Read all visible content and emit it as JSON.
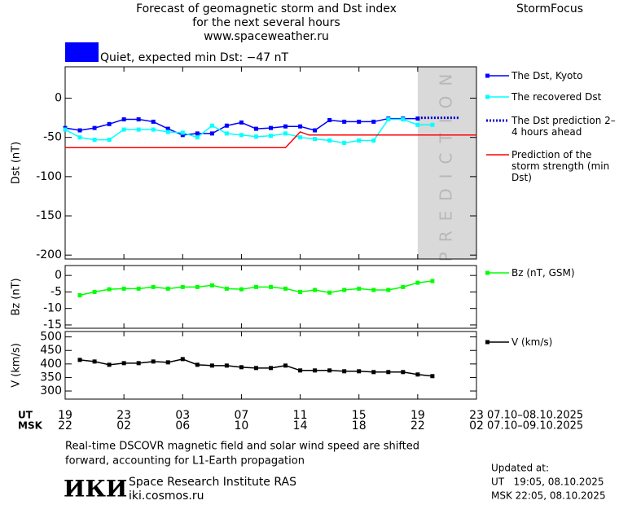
{
  "header": {
    "title": "Forecast of geomagnetic storm and Dst index",
    "subtitle": "for the next several hours",
    "site": "www.spaceweather.ru",
    "brand": "StormFocus"
  },
  "status": {
    "text": "Quiet, expected min Dst: −47 nT",
    "color": "#0000ff"
  },
  "chart_data": [
    {
      "type": "line",
      "ylabel": "Dst (nT)",
      "xlim": [
        0,
        28
      ],
      "ylim": [
        -205,
        40
      ],
      "yticks": [
        0,
        -50,
        -100,
        -150,
        -200
      ],
      "prediction_region": [
        24,
        28
      ],
      "prediction_label": "PREDICTION",
      "series": [
        {
          "name": "The Dst, Kyoto",
          "color": "#0000ff",
          "marker": "square",
          "dash": false,
          "x": [
            0,
            1,
            2,
            3,
            4,
            5,
            6,
            7,
            8,
            9,
            10,
            11,
            12,
            13,
            14,
            15,
            16,
            17,
            18,
            19,
            20,
            21,
            22,
            23,
            24
          ],
          "values": [
            -38,
            -41,
            -38,
            -33,
            -27,
            -27,
            -30,
            -39,
            -47,
            -45,
            -45,
            -35,
            -31,
            -39,
            -38,
            -36,
            -36,
            -41,
            -28,
            -30,
            -30,
            -30,
            -26,
            -26,
            -26
          ]
        },
        {
          "name": "The recovered Dst",
          "color": "#00ffff",
          "marker": "square",
          "dash": false,
          "x": [
            0,
            1,
            2,
            3,
            4,
            5,
            6,
            7,
            8,
            9,
            10,
            11,
            12,
            13,
            14,
            15,
            16,
            17,
            18,
            19,
            20,
            21,
            22,
            23,
            24,
            25
          ],
          "values": [
            -40,
            -50,
            -53,
            -53,
            -40,
            -40,
            -40,
            -43,
            -44,
            -50,
            -35,
            -45,
            -47,
            -49,
            -48,
            -45,
            -50,
            -52,
            -54,
            -57,
            -54,
            -54,
            -27,
            -27,
            -34,
            -34
          ]
        },
        {
          "name": "The Dst prediction 2–4 hours ahead",
          "color": "#0000cc",
          "marker": "none",
          "dash": true,
          "x": [
            24,
            26.8
          ],
          "values": [
            -25,
            -25
          ]
        },
        {
          "name": "Prediction of the storm strength (min Dst)",
          "color": "#ff0000",
          "marker": "none",
          "dash": false,
          "x": [
            0,
            15,
            16,
            16.6,
            28
          ],
          "values": [
            -63,
            -63,
            -43,
            -47,
            -47
          ]
        }
      ]
    },
    {
      "type": "line",
      "ylabel": "Bz (nT)",
      "xlim": [
        0,
        28
      ],
      "ylim": [
        -16,
        3
      ],
      "yticks": [
        0,
        -5,
        -10,
        -15
      ],
      "series": [
        {
          "name": "Bz (nT, GSM)",
          "color": "#00ff00",
          "marker": "square",
          "dash": false,
          "x": [
            1,
            2,
            3,
            4,
            5,
            6,
            7,
            8,
            9,
            10,
            11,
            12,
            13,
            14,
            15,
            16,
            17,
            18,
            19,
            20,
            21,
            22,
            23,
            24,
            25
          ],
          "values": [
            -6,
            -5,
            -4.2,
            -4,
            -4,
            -3.5,
            -4,
            -3.5,
            -3.5,
            -3,
            -4,
            -4.2,
            -3.5,
            -3.5,
            -4,
            -5,
            -4.4,
            -5.2,
            -4.4,
            -4,
            -4.4,
            -4.4,
            -3.5,
            -2.2,
            -1.7
          ]
        }
      ]
    },
    {
      "type": "line",
      "ylabel": "V (km/s)",
      "xlim": [
        0,
        28
      ],
      "ylim": [
        270,
        520
      ],
      "yticks": [
        500,
        450,
        400,
        350,
        300
      ],
      "x_label_ut": "UT",
      "x_label_msk": "MSK",
      "xticks": [
        {
          "value": 0,
          "label": "19"
        },
        {
          "value": 4,
          "label": "23"
        },
        {
          "value": 8,
          "label": "03"
        },
        {
          "value": 12,
          "label": "07"
        },
        {
          "value": 16,
          "label": "11"
        },
        {
          "value": 20,
          "label": "15"
        },
        {
          "value": 24,
          "label": "19"
        },
        {
          "value": 28,
          "label": "23"
        }
      ],
      "xticks_msk": [
        {
          "value": 0,
          "label": "22"
        },
        {
          "value": 4,
          "label": "02"
        },
        {
          "value": 8,
          "label": "06"
        },
        {
          "value": 12,
          "label": "10"
        },
        {
          "value": 16,
          "label": "14"
        },
        {
          "value": 20,
          "label": "18"
        },
        {
          "value": 24,
          "label": "22"
        },
        {
          "value": 28,
          "label": "02"
        }
      ],
      "date_range_ut": "07.10–08.10.2025",
      "date_range_msk": "07.10–09.10.2025",
      "series": [
        {
          "name": "V (km/s)",
          "color": "#000000",
          "marker": "square",
          "dash": false,
          "x": [
            1,
            2,
            3,
            4,
            5,
            6,
            7,
            8,
            9,
            10,
            11,
            12,
            13,
            14,
            15,
            16,
            17,
            18,
            19,
            20,
            21,
            22,
            23,
            24,
            25
          ],
          "values": [
            415,
            409,
            397,
            403,
            403,
            409,
            406,
            418,
            397,
            394,
            394,
            388,
            385,
            385,
            394,
            376,
            376,
            376,
            373,
            373,
            370,
            370,
            370,
            361,
            355
          ]
        }
      ]
    }
  ],
  "footer": {
    "note_1": "Real-time DSCOVR magnetic field and solar wind speed are shifted",
    "note_2": "forward, accounting for L1-Earth propagation",
    "logo": "ИКИ",
    "institute": "Space Research Institute RAS",
    "url": "iki.cosmos.ru",
    "updated_label": "Updated at:",
    "updated_ut": "UT   19:05, 08.10.2025",
    "updated_msk": "MSK 22:05, 08.10.2025"
  }
}
